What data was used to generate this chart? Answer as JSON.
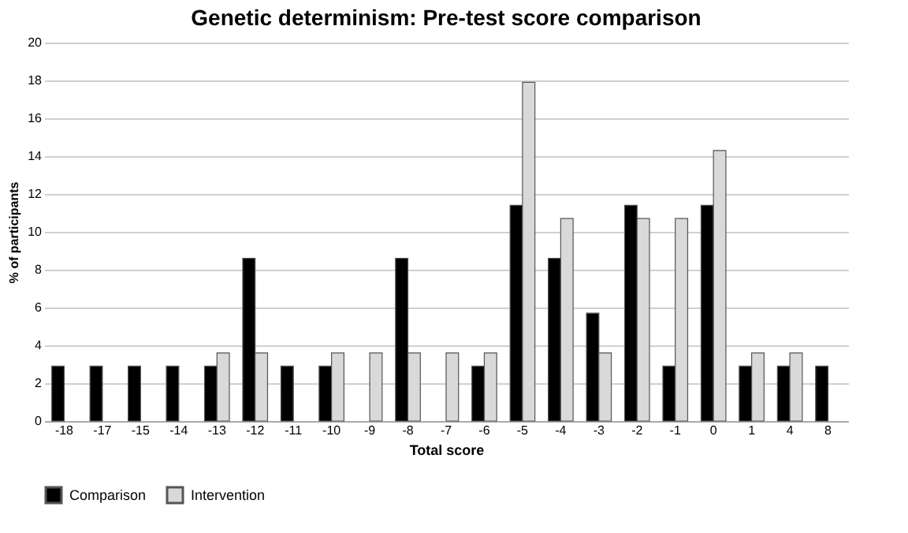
{
  "chart_data": {
    "type": "bar",
    "title": "Genetic determinism: Pre-test score comparison",
    "xlabel": "Total score",
    "ylabel": "% of participants",
    "categories": [
      "-18",
      "-17",
      "-15",
      "-14",
      "-13",
      "-12",
      "-11",
      "-10",
      "-9",
      "-8",
      "-7",
      "-6",
      "-5",
      "-4",
      "-3",
      "-2",
      "-1",
      "0",
      "1",
      "4",
      "8"
    ],
    "series": [
      {
        "name": "Comparison",
        "color": "#000000",
        "values": [
          2.9,
          2.9,
          2.9,
          2.9,
          2.9,
          8.6,
          2.9,
          2.9,
          null,
          8.6,
          null,
          2.9,
          11.4,
          8.6,
          5.7,
          11.4,
          2.9,
          11.4,
          2.9,
          2.9,
          2.9
        ]
      },
      {
        "name": "Intervention",
        "color": "#d9d9d9",
        "values": [
          null,
          null,
          null,
          null,
          3.6,
          3.6,
          null,
          3.6,
          3.6,
          3.6,
          3.6,
          3.6,
          17.9,
          10.7,
          3.6,
          10.7,
          10.7,
          14.3,
          3.6,
          3.6,
          null
        ]
      }
    ],
    "ylim": [
      0,
      20
    ],
    "yticks": [
      0,
      2,
      4,
      6,
      8,
      10,
      12,
      14,
      16,
      18,
      20
    ],
    "grid": "y",
    "legend": "bottom"
  }
}
